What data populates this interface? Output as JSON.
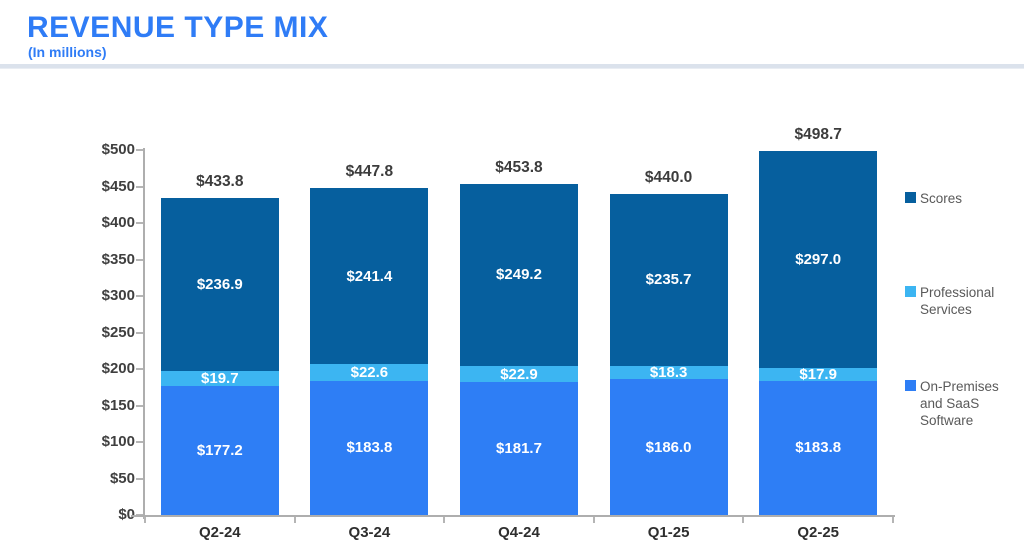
{
  "header": {
    "title": "REVENUE TYPE MIX",
    "subtitle": "(In millions)"
  },
  "colors": {
    "accent_title": "#2F7CF6",
    "scores": "#065F9E",
    "professional_services": "#3CB5F2",
    "on_premises_saas": "#2E7EF5",
    "axis_text": "#3F3F3F",
    "legend_text": "#595959",
    "axis_line": "#AEAEAE",
    "divider": "#DBE2EC",
    "segment_label_text": "#FFFFFF"
  },
  "chart_data": {
    "type": "bar",
    "variant": "stacked-vertical",
    "title": "REVENUE TYPE MIX",
    "subtitle": "(In millions)",
    "xlabel": "",
    "ylabel": "",
    "grid": false,
    "categories": [
      "Q2-24",
      "Q3-24",
      "Q4-24",
      "Q1-25",
      "Q2-25"
    ],
    "series": [
      {
        "name": "On-Premises and SaaS Software",
        "color": "#2E7EF5",
        "values": [
          177.2,
          183.8,
          181.7,
          186.0,
          183.8
        ],
        "labels": [
          "$177.2",
          "$183.8",
          "$181.7",
          "$186.0",
          "$183.8"
        ]
      },
      {
        "name": "Professional Services",
        "color": "#3CB5F2",
        "values": [
          19.7,
          22.6,
          22.9,
          18.3,
          17.9
        ],
        "labels": [
          "$19.7",
          "$22.6",
          "$22.9",
          "$18.3",
          "$17.9"
        ]
      },
      {
        "name": "Scores",
        "color": "#065F9E",
        "values": [
          236.9,
          241.4,
          249.2,
          235.7,
          297.0
        ],
        "labels": [
          "$236.9",
          "$241.4",
          "$249.2",
          "$235.7",
          "$297.0"
        ]
      }
    ],
    "totals": [
      433.8,
      447.8,
      453.8,
      440.0,
      498.7
    ],
    "total_labels": [
      "$433.8",
      "$447.8",
      "$453.8",
      "$440.0",
      "$498.7"
    ],
    "y_axis": {
      "min": 0,
      "max": 500,
      "step": 50,
      "tick_labels": [
        "$0",
        "$50",
        "$100",
        "$150",
        "$200",
        "$250",
        "$300",
        "$350",
        "$400",
        "$450",
        "$500"
      ]
    },
    "legend": {
      "position": "right",
      "items": [
        {
          "label": "Scores",
          "color": "#065F9E"
        },
        {
          "label": "Professional Services",
          "color": "#3CB5F2"
        },
        {
          "label": "On-Premises and SaaS Software",
          "color": "#2E7EF5"
        }
      ]
    }
  }
}
